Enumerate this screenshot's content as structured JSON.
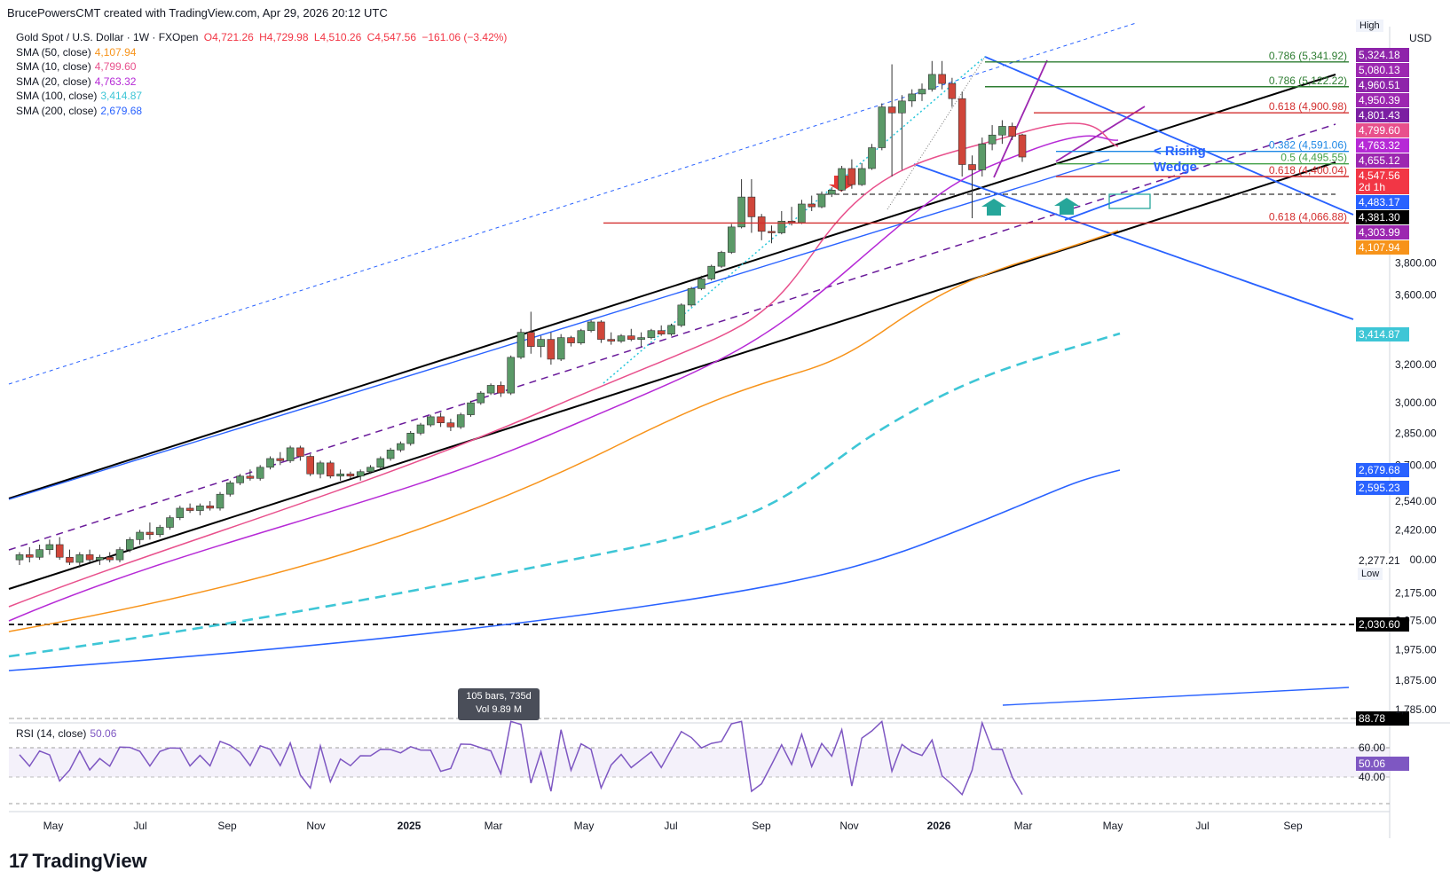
{
  "header": {
    "creator_line": "BrucePowersCMT created with TradingView.com, Apr 29, 2026 20:12 UTC"
  },
  "symbol": {
    "title": "Gold Spot / U.S. Dollar · 1W · FXOpen",
    "open": "O4,721.26",
    "high": "H4,729.98",
    "low": "L4,510.26",
    "close": "C4,547.56",
    "change": "−161.06 (−3.42%)"
  },
  "indicators": [
    {
      "label": "SMA (50, close)",
      "value": "4,107.94",
      "color": "#f7931a"
    },
    {
      "label": "SMA (10, close)",
      "value": "4,799.60",
      "color": "#e8508c"
    },
    {
      "label": "SMA (20, close)",
      "value": "4,763.32",
      "color": "#b62ad6"
    },
    {
      "label": "SMA (100, close)",
      "value": "3,414.87",
      "color": "#3ec6d6"
    },
    {
      "label": "SMA (200, close)",
      "value": "2,679.68",
      "color": "#2962ff"
    }
  ],
  "currency": "USD",
  "tags": {
    "high": "High",
    "low": "Low"
  },
  "annotation": {
    "rising_wedge": "< Rising\nWedge",
    "rw1": "< Rising",
    "rw2": "Wedge"
  },
  "tooltip": {
    "line1": "105 bars, 735d",
    "line2": "Vol 9.89 M"
  },
  "rsi": {
    "label": "RSI (14, close)",
    "value": "50.06",
    "scale": [
      "88.78",
      "60.00",
      "50.06",
      "40.00"
    ]
  },
  "brand": {
    "name": "TradingView"
  },
  "chart_data": {
    "type": "candlestick",
    "title": "Gold Spot / U.S. Dollar · 1W · FXOpen",
    "ylim": [
      1785,
      5324.18
    ],
    "y_scale": "log",
    "x_ticks": [
      "May",
      "Jul",
      "Sep",
      "Nov",
      "2025",
      "Mar",
      "May",
      "Jul",
      "Sep",
      "Nov",
      "2026",
      "Mar",
      "May",
      "Jul",
      "Sep"
    ],
    "y_ticks": [
      "3,800.00",
      "3,600.00",
      "3,200.00",
      "3,000.00",
      "2,850.00",
      "2,700.00",
      "2,540.00",
      "2,420.00",
      "2,300.00",
      "2,175.00",
      "2,075.00",
      "1,975.00",
      "1,875.00",
      "1,785.00"
    ],
    "price_tags": [
      {
        "value": "5,324.18",
        "color": "#8e24aa"
      },
      {
        "value": "5,080.13",
        "color": "#9c27b0"
      },
      {
        "value": "4,960.51",
        "color": "#8e24aa"
      },
      {
        "value": "4,950.39",
        "color": "#9c27b0"
      },
      {
        "value": "4,801.43",
        "color": "#7b1fa2"
      },
      {
        "value": "4,799.60",
        "color": "#e8508c"
      },
      {
        "value": "4,763.32",
        "color": "#b62ad6"
      },
      {
        "value": "4,655.12",
        "color": "#9c27b0"
      },
      {
        "value": "4,547.56",
        "color": "#f23645"
      },
      {
        "value": "2d 1h",
        "color": "#f23645"
      },
      {
        "value": "4,483.17",
        "color": "#2962ff"
      },
      {
        "value": "4,381.30",
        "color": "#000000"
      },
      {
        "value": "4,303.99",
        "color": "#9c27b0"
      },
      {
        "value": "4,107.94",
        "color": "#f7931a"
      },
      {
        "value": "3,414.87",
        "color": "#3ec6d6"
      },
      {
        "value": "2,679.68",
        "color": "#2962ff"
      },
      {
        "value": "2,595.23",
        "color": "#2962ff"
      },
      {
        "value": "2,277.21",
        "color": "#ffffff"
      },
      {
        "value": "2,030.60",
        "color": "#000000"
      }
    ],
    "fib_levels": [
      {
        "label": "0.786 (5,341.92)",
        "value": 5341.92,
        "color": "#2e7d32"
      },
      {
        "label": "0.786 (5,122.22)",
        "value": 5122.22,
        "color": "#2e7d32"
      },
      {
        "label": "0.618 (4,900.98)",
        "value": 4900.98,
        "color": "#d32f2f"
      },
      {
        "label": "0.382 (4,591.06)",
        "value": 4591.06,
        "color": "#1e88e5"
      },
      {
        "label": "0.5 (4,495.55)",
        "value": 4495.55,
        "color": "#43a047"
      },
      {
        "label": "0.618 (4,400.04)",
        "value": 4400.04,
        "color": "#d32f2f"
      },
      {
        "label": "0.618 (4,066.88)",
        "value": 4066.88,
        "color": "#d32f2f"
      }
    ],
    "horizontal_levels": [
      {
        "value": 2030.6,
        "style": "dashed"
      }
    ],
    "candles": [
      [
        2300,
        2330,
        2280,
        2320
      ],
      [
        2320,
        2350,
        2290,
        2310
      ],
      [
        2310,
        2360,
        2300,
        2340
      ],
      [
        2340,
        2380,
        2320,
        2360
      ],
      [
        2360,
        2390,
        2300,
        2310
      ],
      [
        2310,
        2340,
        2280,
        2290
      ],
      [
        2290,
        2330,
        2270,
        2320
      ],
      [
        2320,
        2340,
        2290,
        2300
      ],
      [
        2300,
        2320,
        2280,
        2310
      ],
      [
        2310,
        2330,
        2290,
        2300
      ],
      [
        2300,
        2350,
        2290,
        2340
      ],
      [
        2340,
        2390,
        2330,
        2380
      ],
      [
        2380,
        2420,
        2360,
        2410
      ],
      [
        2410,
        2450,
        2380,
        2400
      ],
      [
        2400,
        2440,
        2390,
        2430
      ],
      [
        2430,
        2480,
        2420,
        2470
      ],
      [
        2470,
        2520,
        2460,
        2510
      ],
      [
        2510,
        2530,
        2490,
        2500
      ],
      [
        2500,
        2530,
        2480,
        2520
      ],
      [
        2520,
        2540,
        2500,
        2510
      ],
      [
        2510,
        2580,
        2500,
        2570
      ],
      [
        2570,
        2630,
        2560,
        2620
      ],
      [
        2620,
        2660,
        2610,
        2650
      ],
      [
        2650,
        2680,
        2630,
        2640
      ],
      [
        2640,
        2700,
        2630,
        2690
      ],
      [
        2690,
        2740,
        2680,
        2730
      ],
      [
        2730,
        2760,
        2700,
        2720
      ],
      [
        2720,
        2790,
        2710,
        2780
      ],
      [
        2780,
        2790,
        2720,
        2740
      ],
      [
        2740,
        2750,
        2650,
        2660
      ],
      [
        2660,
        2720,
        2640,
        2710
      ],
      [
        2710,
        2720,
        2640,
        2650
      ],
      [
        2650,
        2680,
        2630,
        2660
      ],
      [
        2660,
        2670,
        2640,
        2650
      ],
      [
        2650,
        2680,
        2630,
        2670
      ],
      [
        2670,
        2700,
        2660,
        2690
      ],
      [
        2690,
        2740,
        2680,
        2730
      ],
      [
        2730,
        2780,
        2720,
        2770
      ],
      [
        2770,
        2810,
        2760,
        2800
      ],
      [
        2800,
        2860,
        2790,
        2850
      ],
      [
        2850,
        2900,
        2840,
        2890
      ],
      [
        2890,
        2940,
        2880,
        2930
      ],
      [
        2930,
        2950,
        2880,
        2900
      ],
      [
        2900,
        2920,
        2860,
        2880
      ],
      [
        2880,
        2950,
        2870,
        2940
      ],
      [
        2940,
        3010,
        2930,
        3000
      ],
      [
        3000,
        3060,
        2990,
        3050
      ],
      [
        3050,
        3100,
        3040,
        3090
      ],
      [
        3090,
        3110,
        3030,
        3050
      ],
      [
        3050,
        3250,
        3040,
        3240
      ],
      [
        3240,
        3400,
        3230,
        3380
      ],
      [
        3380,
        3500,
        3260,
        3300
      ],
      [
        3300,
        3360,
        3240,
        3340
      ],
      [
        3340,
        3380,
        3200,
        3230
      ],
      [
        3230,
        3370,
        3220,
        3350
      ],
      [
        3350,
        3360,
        3300,
        3320
      ],
      [
        3320,
        3400,
        3310,
        3390
      ],
      [
        3390,
        3450,
        3380,
        3440
      ],
      [
        3440,
        3450,
        3320,
        3340
      ],
      [
        3340,
        3380,
        3310,
        3330
      ],
      [
        3330,
        3370,
        3320,
        3360
      ],
      [
        3360,
        3400,
        3330,
        3340
      ],
      [
        3340,
        3380,
        3300,
        3350
      ],
      [
        3350,
        3400,
        3340,
        3390
      ],
      [
        3390,
        3420,
        3360,
        3370
      ],
      [
        3370,
        3430,
        3360,
        3420
      ],
      [
        3420,
        3550,
        3410,
        3540
      ],
      [
        3540,
        3650,
        3530,
        3640
      ],
      [
        3640,
        3720,
        3630,
        3700
      ],
      [
        3700,
        3790,
        3690,
        3780
      ],
      [
        3780,
        3880,
        3770,
        3870
      ],
      [
        3870,
        4060,
        3860,
        4040
      ],
      [
        4040,
        4380,
        4030,
        4250
      ],
      [
        4250,
        4380,
        4000,
        4110
      ],
      [
        4110,
        4130,
        3950,
        4010
      ],
      [
        4010,
        4050,
        3930,
        4000
      ],
      [
        4000,
        4150,
        3990,
        4080
      ],
      [
        4080,
        4180,
        4050,
        4070
      ],
      [
        4070,
        4230,
        4060,
        4200
      ],
      [
        4200,
        4260,
        4150,
        4180
      ],
      [
        4180,
        4290,
        4170,
        4270
      ],
      [
        4270,
        4320,
        4250,
        4300
      ],
      [
        4300,
        4480,
        4290,
        4460
      ],
      [
        4460,
        4530,
        4310,
        4340
      ],
      [
        4340,
        4500,
        4330,
        4460
      ],
      [
        4460,
        4650,
        4450,
        4620
      ],
      [
        4620,
        4980,
        4600,
        4950
      ],
      [
        4950,
        5320,
        4400,
        4900
      ],
      [
        4900,
        5050,
        4450,
        5000
      ],
      [
        5000,
        5100,
        4950,
        5060
      ],
      [
        5060,
        5150,
        5000,
        5100
      ],
      [
        5100,
        5350,
        5080,
        5230
      ],
      [
        5230,
        5350,
        5100,
        5150
      ],
      [
        5150,
        5200,
        4950,
        5020
      ],
      [
        5020,
        5080,
        4400,
        4490
      ],
      [
        4490,
        4560,
        4100,
        4450
      ],
      [
        4450,
        4700,
        4400,
        4650
      ],
      [
        4650,
        4800,
        4600,
        4720
      ],
      [
        4720,
        4840,
        4650,
        4790
      ],
      [
        4790,
        4820,
        4680,
        4710
      ],
      [
        4721.26,
        4729.98,
        4510.26,
        4547.56
      ]
    ],
    "series": [
      {
        "name": "SMA (10, close)",
        "last": 4799.6
      },
      {
        "name": "SMA (20, close)",
        "last": 4763.32
      },
      {
        "name": "SMA (50, close)",
        "last": 4107.94
      },
      {
        "name": "SMA (100, close)",
        "last": 3414.87
      },
      {
        "name": "SMA (200, close)",
        "last": 2679.68
      }
    ]
  }
}
